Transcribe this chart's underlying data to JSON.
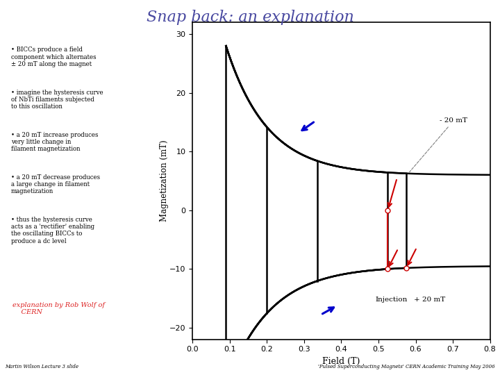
{
  "title": "Snap back: an explanation",
  "title_color": "#4848a0",
  "title_fontsize": 16,
  "bullet_points": [
    "BICCs produce a field\ncomponent which alternates\n± 20 mT along the magnet",
    "imagine the hysteresis curve\nof NbTi filaments subjected\nto this oscillation",
    "a 20 mT increase produces\nvery little change in\nfilament magnetization",
    "a 20 mT decrease produces\na large change in filament\nmagnetization",
    "thus the hysteresis curve\nacts as a 'rectifier' enabling\nthe oscillating BICCs to\nproduce a dc level"
  ],
  "credit_text": "explanation by Rob Wolf of\n    CERN",
  "credit_color": "#dd2222",
  "footer_left": "Martin Wilson Lecture 3 slide",
  "footer_right": "'Pulsed Superconducting Magnets' CERN Academic Training May 2006",
  "xlabel": "Field (T)",
  "ylabel": "Magnetization (mT)",
  "xlim": [
    0,
    0.8
  ],
  "ylim": [
    -22,
    32
  ],
  "xticks": [
    0,
    0.1,
    0.2,
    0.3,
    0.4,
    0.5,
    0.6,
    0.7,
    0.8
  ],
  "yticks": [
    -20,
    -10,
    0,
    10,
    20,
    30
  ],
  "bg_color": "#ffffff",
  "curve_color": "#000000",
  "arrow_blue": "#0000cc",
  "arrow_red": "#cc0000"
}
